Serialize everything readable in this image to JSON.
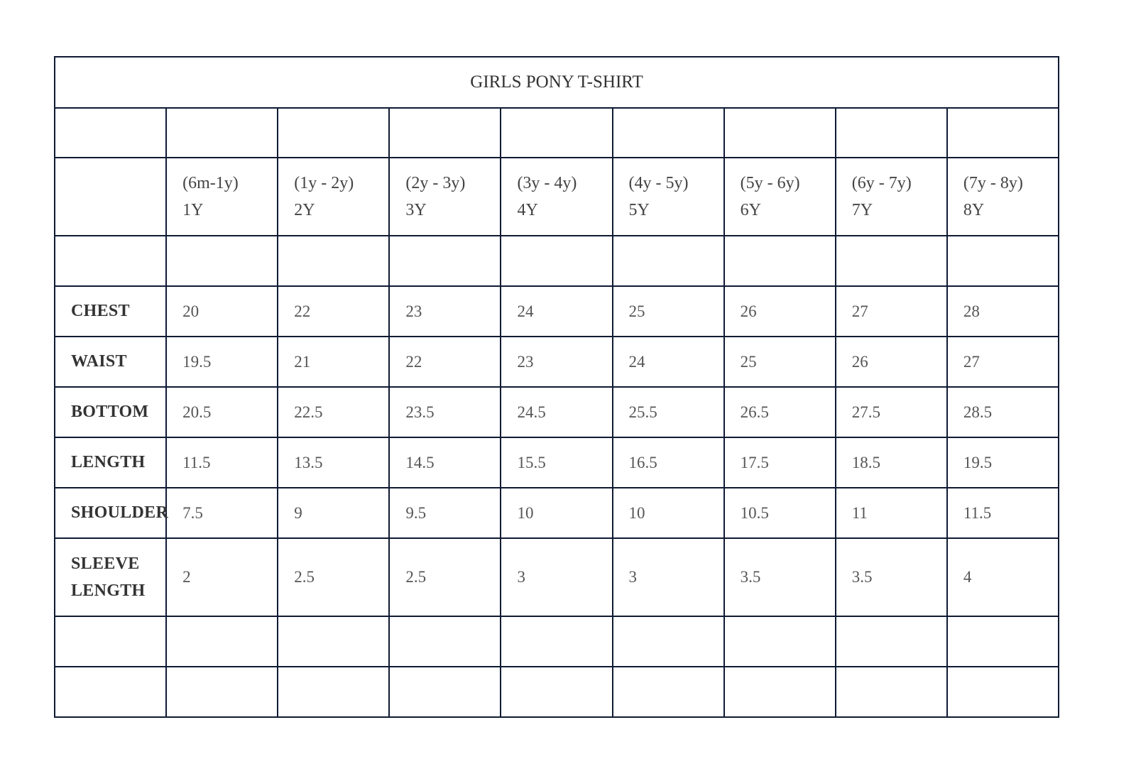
{
  "title": "GIRLS PONY T-SHIRT",
  "sizes": [
    {
      "range": "(6m-1y)",
      "size": "1Y"
    },
    {
      "range": "(1y - 2y)",
      "size": "2Y"
    },
    {
      "range": "(2y - 3y)",
      "size": "3Y"
    },
    {
      "range": "(3y - 4y)",
      "size": "4Y"
    },
    {
      "range": "(4y - 5y)",
      "size": "5Y"
    },
    {
      "range": "(5y - 6y)",
      "size": "6Y"
    },
    {
      "range": "(6y - 7y)",
      "size": "7Y"
    },
    {
      "range": "(7y - 8y)",
      "size": "8Y"
    }
  ],
  "rows": [
    {
      "label": "CHEST",
      "values": [
        "20",
        "22",
        "23",
        "24",
        "25",
        "26",
        "27",
        "28"
      ]
    },
    {
      "label": "WAIST",
      "values": [
        "19.5",
        "21",
        "22",
        "23",
        "24",
        "25",
        "26",
        "27"
      ]
    },
    {
      "label": "BOTTOM",
      "values": [
        "20.5",
        "22.5",
        "23.5",
        "24.5",
        "25.5",
        "26.5",
        "27.5",
        "28.5"
      ]
    },
    {
      "label": "LENGTH",
      "values": [
        "11.5",
        "13.5",
        "14.5",
        "15.5",
        "16.5",
        "17.5",
        "18.5",
        "19.5"
      ]
    },
    {
      "label": "SHOULDER",
      "values": [
        "7.5",
        "9",
        "9.5",
        "10",
        "10",
        "10.5",
        "11",
        "11.5"
      ]
    },
    {
      "label": "SLEEVE LENGTH",
      "label_lines": [
        "SLEEVE",
        "LENGTH"
      ],
      "values": [
        "2",
        "2.5",
        "2.5",
        "3",
        "3",
        "3.5",
        "3.5",
        "4"
      ]
    }
  ]
}
